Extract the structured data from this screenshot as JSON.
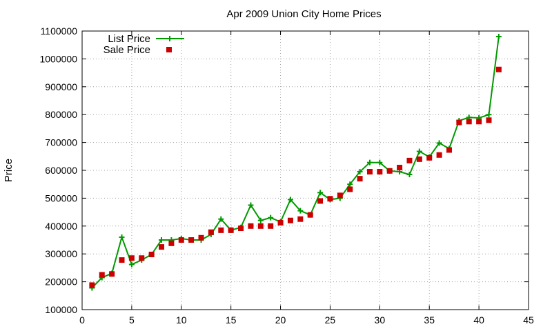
{
  "chart_data": {
    "type": "line",
    "title": "Apr 2009 Union City Home Prices",
    "xlabel": "",
    "ylabel": "Price",
    "xlim": [
      0,
      45
    ],
    "ylim": [
      100000,
      1100000
    ],
    "xticks": [
      0,
      5,
      10,
      15,
      20,
      25,
      30,
      35,
      40,
      45
    ],
    "yticks": [
      100000,
      200000,
      300000,
      400000,
      500000,
      600000,
      700000,
      800000,
      900000,
      1000000,
      1100000
    ],
    "grid": true,
    "legend_position": "top-left",
    "series": [
      {
        "name": "List Price",
        "style": "line+cross",
        "color": "#009900",
        "x": [
          1,
          2,
          3,
          4,
          5,
          6,
          7,
          8,
          9,
          10,
          11,
          12,
          13,
          14,
          15,
          16,
          17,
          18,
          19,
          20,
          21,
          22,
          23,
          24,
          25,
          26,
          27,
          28,
          29,
          30,
          31,
          32,
          33,
          34,
          35,
          36,
          37,
          38,
          39,
          40,
          41,
          42
        ],
        "y": [
          178000,
          215000,
          230000,
          360000,
          262000,
          278000,
          298000,
          350000,
          350000,
          355000,
          350000,
          350000,
          370000,
          425000,
          385000,
          395000,
          475000,
          420000,
          430000,
          415000,
          495000,
          455000,
          440000,
          520000,
          495000,
          500000,
          550000,
          595000,
          628000,
          628000,
          598000,
          595000,
          585000,
          668000,
          648000,
          698000,
          678000,
          778000,
          790000,
          788000,
          800000,
          1080000
        ]
      },
      {
        "name": "Sale Price",
        "style": "square",
        "color": "#cc0000",
        "x": [
          1,
          2,
          3,
          4,
          5,
          6,
          7,
          8,
          9,
          10,
          11,
          12,
          13,
          14,
          15,
          16,
          17,
          18,
          19,
          20,
          21,
          22,
          23,
          24,
          25,
          26,
          27,
          28,
          29,
          30,
          31,
          32,
          33,
          34,
          35,
          36,
          37,
          38,
          39,
          40,
          41,
          42
        ],
        "y": [
          188000,
          225000,
          228000,
          278000,
          285000,
          285000,
          298000,
          325000,
          338000,
          350000,
          350000,
          358000,
          378000,
          385000,
          385000,
          392000,
          400000,
          400000,
          400000,
          412000,
          420000,
          425000,
          440000,
          490000,
          498000,
          510000,
          532000,
          570000,
          595000,
          595000,
          598000,
          610000,
          635000,
          640000,
          645000,
          655000,
          673000,
          772000,
          775000,
          775000,
          780000,
          962000
        ]
      }
    ]
  }
}
